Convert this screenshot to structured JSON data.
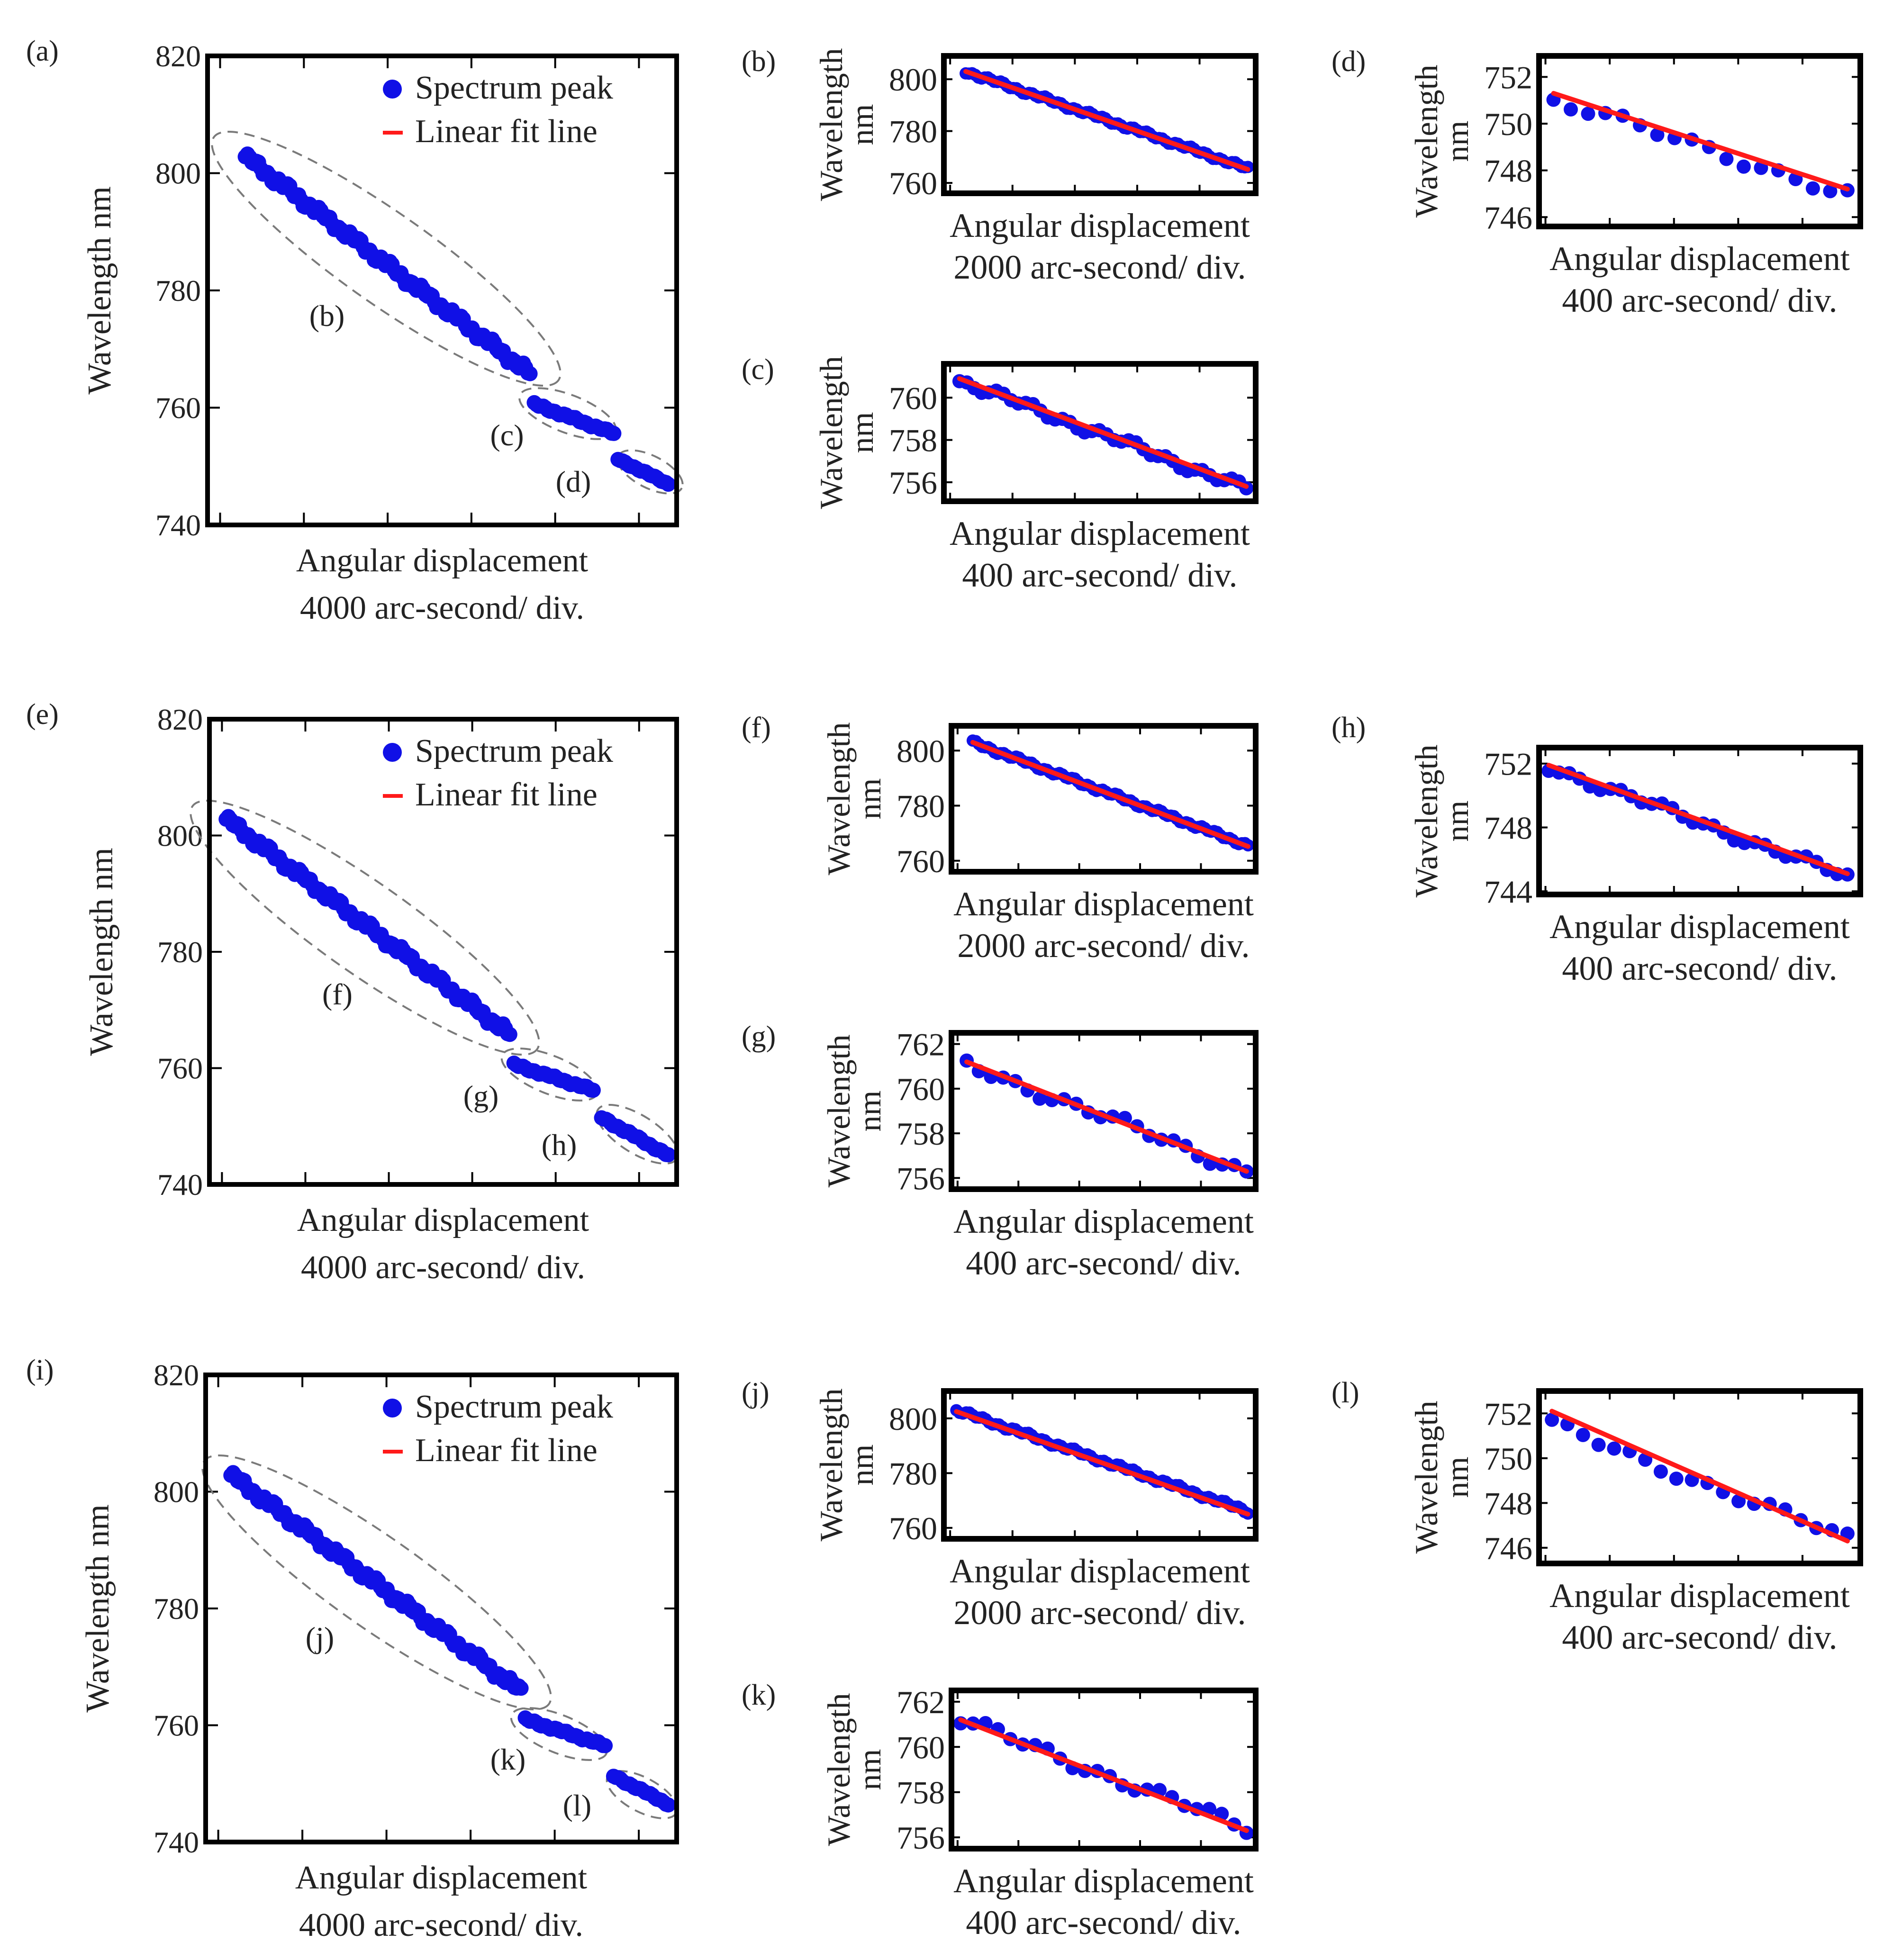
{
  "colors": {
    "marker": "#1010e6",
    "fit": "#ff1a1a",
    "frame": "#000000",
    "ellipse": "#7a7a7a",
    "text": "#222222"
  },
  "legend": {
    "marker_label": "Spectrum peak",
    "line_label": "Linear fit line"
  },
  "chart_data": [
    {
      "id": "a",
      "panel_label": "(a)",
      "kind": "main",
      "type": "scatter",
      "ylabel": "Wavelength nm",
      "xlabel": "Angular displacement",
      "xunit": "4000 arc-second/ div.",
      "xlim": [
        0,
        5.6
      ],
      "ylim": [
        740,
        820
      ],
      "yticks": [
        740,
        760,
        780,
        800,
        820
      ],
      "xticks": [
        0.15,
        1.15,
        2.15,
        3.15,
        4.15,
        5.15
      ],
      "segments": [
        {
          "label": "(b)",
          "x0": 0.45,
          "y0": 802.8,
          "x1": 3.85,
          "y1": 765.8,
          "wobble": 1.0
        },
        {
          "label": "(c)",
          "x0": 3.9,
          "y0": 760.6,
          "x1": 4.85,
          "y1": 755.6,
          "wobble": 0.3
        },
        {
          "label": "(d)",
          "x0": 4.9,
          "y0": 751.2,
          "x1": 5.5,
          "y1": 747.0,
          "wobble": 0.2
        }
      ]
    },
    {
      "id": "b",
      "panel_label": "(b)",
      "kind": "sub",
      "type": "scatter",
      "ylabel": [
        "Wavelength",
        "nm"
      ],
      "xlabel": "Angular displacement",
      "xunit": "2000 arc-second/ div.",
      "xlim": [
        0,
        10
      ],
      "ylim": [
        756,
        809
      ],
      "yticks": [
        760,
        780,
        800
      ],
      "xticks": [
        0.2,
        2.2,
        4.2,
        6.2,
        8.2
      ],
      "points": {
        "x0": 0.7,
        "x1": 9.75,
        "y0": 803.0,
        "y1": 765.5,
        "n": 90,
        "wobble": 0.9
      },
      "fit": [
        803.0,
        765.2
      ]
    },
    {
      "id": "c",
      "panel_label": "(c)",
      "kind": "sub",
      "type": "scatter",
      "ylabel": [
        "Wavelength",
        "nm"
      ],
      "xlabel": "Angular displacement",
      "xunit": "400 arc-second/ div.",
      "xlim": [
        0,
        10
      ],
      "ylim": [
        755.1,
        761.6
      ],
      "yticks": [
        756,
        758,
        760
      ],
      "xticks": [
        0.2,
        2.2,
        4.2,
        6.2,
        8.2
      ],
      "points": {
        "x0": 0.5,
        "x1": 9.7,
        "y0": 760.8,
        "y1": 755.7,
        "n": 40,
        "wobble": 0.25
      },
      "fit": [
        760.9,
        755.8
      ]
    },
    {
      "id": "d",
      "panel_label": "(d)",
      "kind": "sub",
      "type": "scatter",
      "ylabel": [
        "Wavelength",
        "nm"
      ],
      "xlabel": "Angular displacement",
      "xunit": "400 arc-second/ div.",
      "xlim": [
        0,
        10
      ],
      "ylim": [
        745.6,
        752.9
      ],
      "yticks": [
        746,
        748,
        750,
        752
      ],
      "xticks": [
        0.2,
        2.2,
        4.2,
        6.2,
        8.2
      ],
      "points": {
        "x0": 0.45,
        "x1": 9.6,
        "y0": 751.0,
        "y1": 747.0,
        "n": 18,
        "wobble": 0.3
      },
      "fit": [
        751.3,
        747.2
      ]
    },
    {
      "id": "e",
      "panel_label": "(e)",
      "kind": "main",
      "type": "scatter",
      "ylabel": "Wavelength nm",
      "xlabel": "Angular displacement",
      "xunit": "4000 arc-second/ div.",
      "xlim": [
        0,
        5.6
      ],
      "ylim": [
        740,
        820
      ],
      "yticks": [
        740,
        760,
        780,
        800,
        820
      ],
      "xticks": [
        0.15,
        1.15,
        2.15,
        3.15,
        4.15,
        5.15
      ],
      "segments": [
        {
          "label": "(f)",
          "x0": 0.2,
          "y0": 802.8,
          "x1": 3.6,
          "y1": 765.8,
          "wobble": 1.0
        },
        {
          "label": "(g)",
          "x0": 3.65,
          "y0": 760.6,
          "x1": 4.6,
          "y1": 756.2,
          "wobble": 0.3
        },
        {
          "label": "(h)",
          "x0": 4.7,
          "y0": 751.5,
          "x1": 5.5,
          "y1": 745.0,
          "wobble": 0.3
        }
      ]
    },
    {
      "id": "f",
      "panel_label": "(f)",
      "kind": "sub",
      "type": "scatter",
      "ylabel": [
        "Wavelength",
        "nm"
      ],
      "xlabel": "Angular displacement",
      "xunit": "2000 arc-second/ div.",
      "xlim": [
        0,
        10
      ],
      "ylim": [
        756,
        809
      ],
      "yticks": [
        760,
        780,
        800
      ],
      "xticks": [
        0.2,
        2.2,
        4.2,
        6.2,
        8.2
      ],
      "points": {
        "x0": 0.7,
        "x1": 9.75,
        "y0": 803.0,
        "y1": 765.5,
        "n": 90,
        "wobble": 0.9
      },
      "fit": [
        803.0,
        765.2
      ]
    },
    {
      "id": "g",
      "panel_label": "(g)",
      "kind": "sub",
      "type": "scatter",
      "ylabel": [
        "Wavelength",
        "nm"
      ],
      "xlabel": "Angular displacement",
      "xunit": "400 arc-second/ div.",
      "xlim": [
        0,
        10
      ],
      "ylim": [
        755.5,
        762.5
      ],
      "yticks": [
        756,
        758,
        760,
        762
      ],
      "xticks": [
        0.2,
        2.2,
        4.2,
        6.2,
        8.2
      ],
      "points": {
        "x0": 0.5,
        "x1": 9.7,
        "y0": 761.1,
        "y1": 756.3,
        "n": 24,
        "wobble": 0.3
      },
      "fit": [
        761.2,
        756.3
      ]
    },
    {
      "id": "h",
      "panel_label": "(h)",
      "kind": "sub",
      "type": "scatter",
      "ylabel": [
        "Wavelength",
        "nm"
      ],
      "xlabel": "Angular displacement",
      "xunit": "400 arc-second/ div.",
      "xlim": [
        0,
        10
      ],
      "ylim": [
        743.8,
        753.0
      ],
      "yticks": [
        744,
        748,
        752
      ],
      "xticks": [
        0.2,
        2.2,
        4.2,
        6.2,
        8.2
      ],
      "points": {
        "x0": 0.3,
        "x1": 9.6,
        "y0": 751.8,
        "y1": 744.9,
        "n": 30,
        "wobble": 0.35
      },
      "fit": [
        751.9,
        745.1
      ]
    },
    {
      "id": "i",
      "panel_label": "(i)",
      "kind": "main",
      "type": "scatter",
      "ylabel": "Wavelength nm",
      "xlabel": "Angular displacement",
      "xunit": "4000 arc-second/ div.",
      "xlim": [
        0,
        5.6
      ],
      "ylim": [
        740,
        820
      ],
      "yticks": [
        740,
        760,
        780,
        800,
        820
      ],
      "xticks": [
        0.15,
        1.15,
        2.15,
        3.15,
        4.15,
        5.15
      ],
      "segments": [
        {
          "label": "(j)",
          "x0": 0.3,
          "y0": 802.8,
          "x1": 3.75,
          "y1": 765.8,
          "wobble": 1.0
        },
        {
          "label": "(k)",
          "x0": 3.8,
          "y0": 761.0,
          "x1": 4.75,
          "y1": 756.5,
          "wobble": 0.3
        },
        {
          "label": "(l)",
          "x0": 4.85,
          "y0": 751.3,
          "x1": 5.5,
          "y1": 746.5,
          "wobble": 0.25
        }
      ]
    },
    {
      "id": "j",
      "panel_label": "(j)",
      "kind": "sub",
      "type": "scatter",
      "ylabel": [
        "Wavelength",
        "nm"
      ],
      "xlabel": "Angular displacement",
      "xunit": "2000 arc-second/ div.",
      "xlim": [
        0,
        10
      ],
      "ylim": [
        756,
        810
      ],
      "yticks": [
        760,
        780,
        800
      ],
      "xticks": [
        0.2,
        2.2,
        4.2,
        6.2,
        8.2
      ],
      "points": {
        "x0": 0.4,
        "x1": 9.75,
        "y0": 803.0,
        "y1": 766.0,
        "n": 90,
        "wobble": 0.9
      },
      "fit": [
        802.5,
        765.0
      ]
    },
    {
      "id": "k",
      "panel_label": "(k)",
      "kind": "sub",
      "type": "scatter",
      "ylabel": [
        "Wavelength",
        "nm"
      ],
      "xlabel": "Angular displacement",
      "xunit": "400 arc-second/ div.",
      "xlim": [
        0,
        10
      ],
      "ylim": [
        755.5,
        762.5
      ],
      "yticks": [
        756,
        758,
        760,
        762
      ],
      "xticks": [
        0.2,
        2.2,
        4.2,
        6.2,
        8.2
      ],
      "points": {
        "x0": 0.3,
        "x1": 9.7,
        "y0": 761.2,
        "y1": 756.4,
        "n": 24,
        "wobble": 0.3
      },
      "fit": [
        761.2,
        756.3
      ]
    },
    {
      "id": "l",
      "panel_label": "(l)",
      "kind": "sub",
      "type": "scatter",
      "ylabel": [
        "Wavelength",
        "nm"
      ],
      "xlabel": "Angular displacement",
      "xunit": "400 arc-second/ div.",
      "xlim": [
        0,
        10
      ],
      "ylim": [
        745.3,
        753.0
      ],
      "yticks": [
        746,
        748,
        750,
        752
      ],
      "xticks": [
        0.2,
        2.2,
        4.2,
        6.2,
        8.2
      ],
      "points": {
        "x0": 0.4,
        "x1": 9.6,
        "y0": 751.5,
        "y1": 746.4,
        "n": 20,
        "wobble": 0.3
      },
      "fit": [
        752.1,
        746.3
      ]
    }
  ]
}
